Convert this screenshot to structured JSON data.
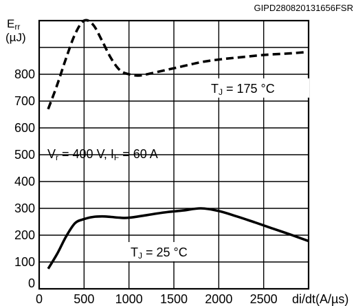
{
  "chart_data": {
    "type": "line",
    "reference_code": "GIPD280820131656FSR",
    "ylabel_line1": "E",
    "ylabel_sub": "rr",
    "ylabel_line2": "(µJ)",
    "xlabel": "di/dt(A/µs)",
    "x_ticks": [
      "0",
      "500",
      "1000",
      "1500",
      "2000",
      "2500"
    ],
    "y_ticks": [
      "0",
      "100",
      "200",
      "300",
      "400",
      "500",
      "600",
      "700",
      "800"
    ],
    "xlim": [
      0,
      3000
    ],
    "ylim": [
      0,
      1000
    ],
    "grid": true,
    "condition": {
      "v": "V",
      "v_sub": "r",
      "v_rest": " = 400 V, I",
      "i_sub": "F",
      "i_rest": " = 60 A"
    },
    "series": [
      {
        "label_t": "T",
        "label_sub": "J",
        "label_rest": " = 175 °C",
        "style": "dashed",
        "x": [
          100,
          200,
          300,
          400,
          500,
          600,
          700,
          800,
          900,
          1000,
          1100,
          1200,
          1400,
          1600,
          1800,
          2000,
          2200,
          2500,
          2800,
          2950
        ],
        "y": [
          670,
          760,
          860,
          950,
          1000,
          985,
          925,
          860,
          815,
          800,
          795,
          800,
          815,
          830,
          845,
          855,
          862,
          872,
          878,
          882
        ]
      },
      {
        "label_t": "T",
        "label_sub": "J",
        "label_rest": " = 25 °C",
        "style": "solid",
        "x": [
          100,
          200,
          300,
          400,
          500,
          600,
          700,
          800,
          900,
          1000,
          1200,
          1400,
          1600,
          1800,
          2000,
          2200,
          2400,
          2600,
          2800,
          3000
        ],
        "y": [
          75,
          130,
          195,
          245,
          260,
          268,
          270,
          268,
          265,
          265,
          275,
          285,
          292,
          300,
          290,
          270,
          248,
          225,
          202,
          178
        ]
      }
    ]
  }
}
